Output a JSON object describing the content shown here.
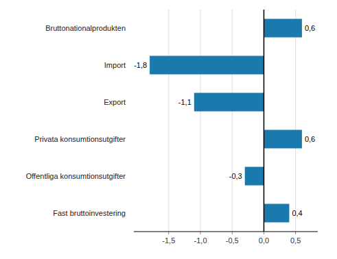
{
  "chart_data": {
    "type": "bar",
    "orientation": "horizontal",
    "categories": [
      "Fast bruttoinvestering",
      "Offentliga konsumtionsutgifter",
      "Privata konsumtionsutgifter",
      "Export",
      "Import",
      "Bruttonationalprodukten"
    ],
    "values": [
      0.4,
      -0.3,
      0.6,
      -1.1,
      -1.8,
      0.6
    ],
    "value_labels": [
      "0,4",
      "-0,3",
      "0,6",
      "-1,1",
      "-1,8",
      "0,6"
    ],
    "color": "#1a7aad",
    "xlim": [
      -2.05,
      0.85
    ],
    "xticks": [
      {
        "value": -1.5,
        "label": "-1,5"
      },
      {
        "value": -1.0,
        "label": "-1,0"
      },
      {
        "value": -0.5,
        "label": "-0,5"
      },
      {
        "value": 0.0,
        "label": "0,0"
      },
      {
        "value": 0.5,
        "label": "0,5"
      }
    ],
    "grid": true,
    "data_labels": true
  }
}
